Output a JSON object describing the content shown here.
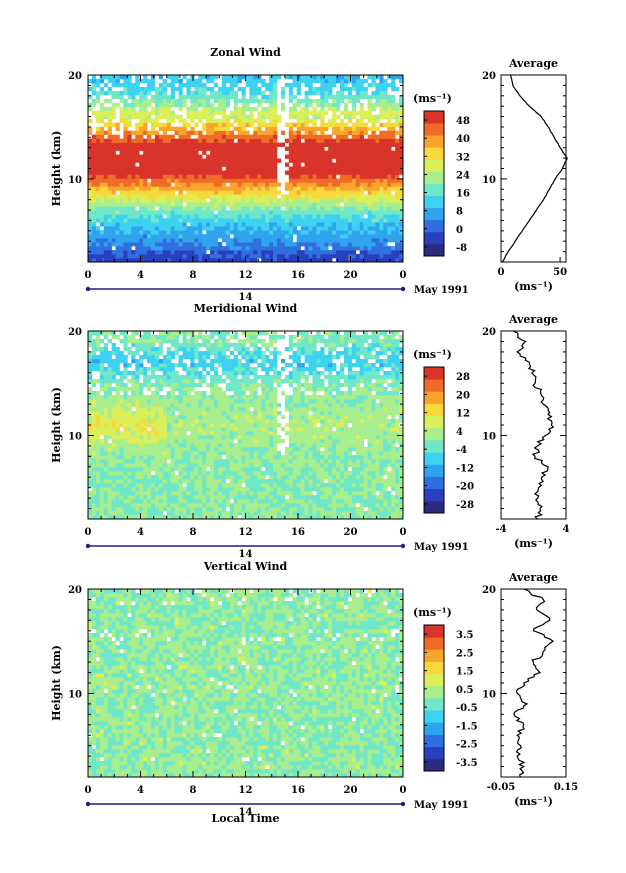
{
  "figure": {
    "xlabel": "Local Time",
    "date_label": "May 1991",
    "day_label": "14"
  },
  "chart_data": [
    {
      "type": "heatmap",
      "title": "Zonal Wind",
      "ylabel": "Height (km)",
      "x_ticks": [
        "0",
        "4",
        "8",
        "12",
        "16",
        "20",
        "0"
      ],
      "y_ticks": [
        "20",
        "10"
      ],
      "ylim": [
        2,
        20
      ],
      "colorbar": {
        "unit": "(ms⁻¹)",
        "ticks": [
          "48",
          "40",
          "32",
          "24",
          "16",
          "8",
          "0",
          "-8"
        ],
        "range": [
          -12,
          52
        ]
      },
      "profile": {
        "title": "Average",
        "x_ticks": [
          "0",
          "50"
        ],
        "y_ticks": [
          "20",
          "10"
        ],
        "xlim": [
          0,
          55
        ],
        "xlabel": "(ms⁻¹)",
        "heights": [
          2,
          3,
          4,
          5,
          6,
          7,
          8,
          9,
          10,
          11,
          12,
          13,
          14,
          15,
          16,
          17,
          18,
          19,
          20
        ],
        "values": [
          1,
          6,
          12,
          18,
          24,
          30,
          36,
          41,
          46,
          52,
          56,
          50,
          45,
          40,
          34,
          24,
          16,
          10,
          8
        ]
      }
    },
    {
      "type": "heatmap",
      "title": "Meridional Wind",
      "ylabel": "Height (km)",
      "x_ticks": [
        "0",
        "4",
        "8",
        "12",
        "16",
        "20",
        "0"
      ],
      "y_ticks": [
        "20",
        "10"
      ],
      "ylim": [
        2,
        20
      ],
      "colorbar": {
        "unit": "(ms⁻¹)",
        "ticks": [
          "28",
          "20",
          "12",
          "4",
          "-4",
          "-12",
          "-20",
          "-28"
        ],
        "range": [
          -32,
          32
        ]
      },
      "profile": {
        "title": "Average",
        "x_ticks": [
          "-4",
          "4"
        ],
        "y_ticks": [
          "20",
          "10"
        ],
        "xlim": [
          -4,
          4
        ],
        "xlabel": "(ms⁻¹)",
        "heights": [
          2,
          3,
          4,
          5,
          6,
          7,
          8,
          9,
          10,
          11,
          12,
          13,
          14,
          15,
          16,
          17,
          18,
          19,
          20
        ],
        "values": [
          0.5,
          0.8,
          0.5,
          0.6,
          1.0,
          1.8,
          0.2,
          0.5,
          1.5,
          2.2,
          1.8,
          1.2,
          0.9,
          0.2,
          -0.2,
          -0.5,
          -2.0,
          -1.0,
          -2.5
        ]
      }
    },
    {
      "type": "heatmap",
      "title": "Vertical Wind",
      "ylabel": "Height (km)",
      "x_ticks": [
        "0",
        "4",
        "8",
        "12",
        "16",
        "20",
        "0"
      ],
      "y_ticks": [
        "20",
        "10"
      ],
      "ylim": [
        2,
        20
      ],
      "colorbar": {
        "unit": "(ms⁻¹)",
        "ticks": [
          "3.5",
          "2.5",
          "1.5",
          "0.5",
          "-0.5",
          "-1.5",
          "-2.5",
          "-3.5"
        ],
        "range": [
          -4,
          4
        ]
      },
      "profile": {
        "title": "Average",
        "x_ticks": [
          "-0.05",
          "0.15"
        ],
        "y_ticks": [
          "20",
          "10"
        ],
        "xlim": [
          -0.05,
          0.15
        ],
        "xlabel": "(ms⁻¹)",
        "heights": [
          2,
          3,
          4,
          5,
          6,
          7,
          8,
          9,
          10,
          11,
          12,
          13,
          14,
          15,
          16,
          17,
          18,
          19,
          20
        ],
        "values": [
          0.01,
          0.02,
          0.0,
          0.01,
          0.0,
          0.02,
          -0.01,
          0.03,
          0.0,
          0.02,
          0.07,
          0.05,
          0.08,
          0.11,
          0.05,
          0.1,
          0.06,
          0.08,
          0.02
        ]
      }
    }
  ]
}
